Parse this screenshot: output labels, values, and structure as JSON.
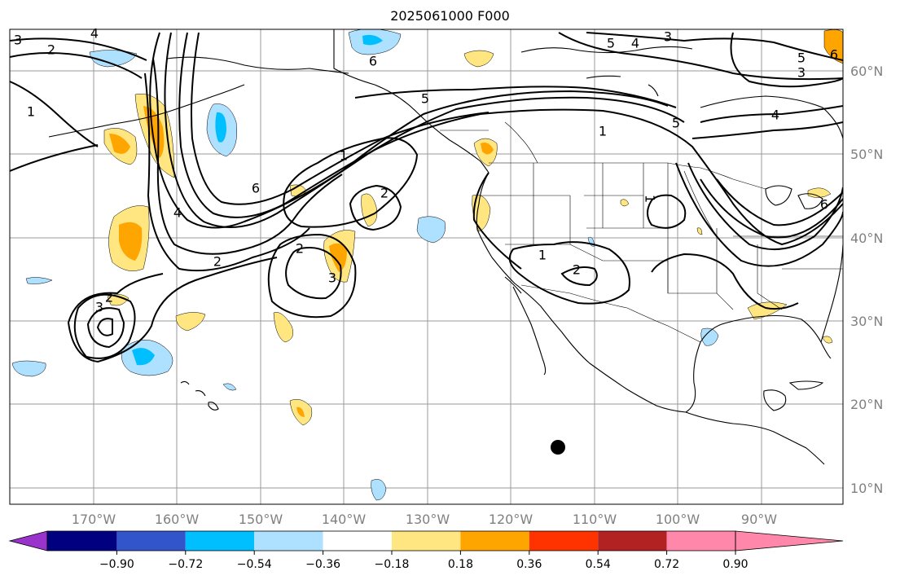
{
  "title": "2025061000 F000",
  "lon_labels": [
    "170°W",
    "160°W",
    "150°W",
    "140°W",
    "130°W",
    "120°W",
    "110°W",
    "100°W",
    "90°W"
  ],
  "lat_labels": [
    "60°N",
    "50°N",
    "40°N",
    "30°N",
    "20°N",
    "10°N"
  ],
  "colorbar": {
    "labels": [
      "−0.90",
      "−0.72",
      "−0.54",
      "−0.36",
      "−0.18",
      "0.18",
      "0.36",
      "0.54",
      "0.72",
      "0.90"
    ],
    "colors": [
      "#9933cc",
      "#000080",
      "#3355cc",
      "#00bfff",
      "#aee0ff",
      "#ffffff",
      "#ffe680",
      "#ffa500",
      "#ff3300",
      "#b22222",
      "#ff88aa"
    ]
  },
  "contour_labels": [
    {
      "text": "3"
    },
    {
      "text": "2"
    },
    {
      "text": "4"
    },
    {
      "text": "1"
    },
    {
      "text": "4"
    },
    {
      "text": "6"
    },
    {
      "text": "1"
    },
    {
      "text": "6"
    },
    {
      "text": "2"
    },
    {
      "text": "2"
    },
    {
      "text": "2"
    },
    {
      "text": "3"
    },
    {
      "text": "3"
    },
    {
      "text": "2"
    },
    {
      "text": "5"
    },
    {
      "text": "1"
    },
    {
      "text": "1"
    },
    {
      "text": "2"
    },
    {
      "text": "5"
    },
    {
      "text": "4"
    },
    {
      "text": "3"
    },
    {
      "text": "5"
    },
    {
      "text": "3"
    },
    {
      "text": "4"
    },
    {
      "text": "5"
    },
    {
      "text": "6"
    },
    {
      "text": "1"
    },
    {
      "text": "6"
    }
  ],
  "marker": {
    "shape": "filled-circle",
    "color": "#000000"
  }
}
